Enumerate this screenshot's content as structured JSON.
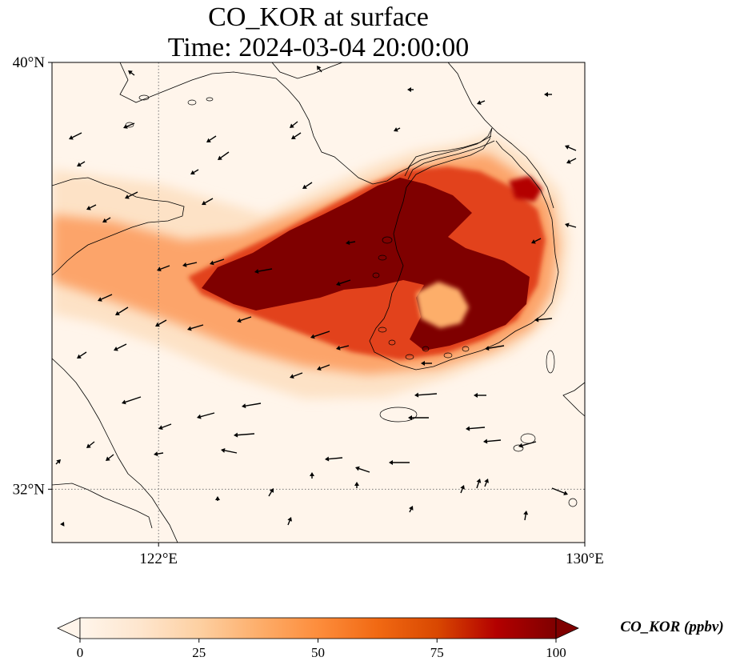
{
  "title": {
    "line1": "CO_KOR at surface",
    "line2": "Time: 2024-03-04 20:00:00"
  },
  "map": {
    "lon_range": [
      120,
      130
    ],
    "lat_range": [
      31,
      40
    ],
    "lat_ticks": [
      {
        "value": 40,
        "label": "40°N"
      },
      {
        "value": 32,
        "label": "32°N"
      }
    ],
    "lon_ticks": [
      {
        "value": 122,
        "label": "122°E"
      },
      {
        "value": 130,
        "label": "130°E"
      }
    ],
    "gridlines": {
      "lon": [
        122
      ],
      "lat": [
        32
      ],
      "style": "dotted"
    },
    "field_colors": {
      "background": "#fff5eb",
      "low": "#fee6ce",
      "medium": "#fdae6b",
      "high": "#e6550d",
      "very_high": "#7f0000"
    }
  },
  "colorbar": {
    "min": 0,
    "max": 100,
    "extend": "both",
    "ticks": [
      {
        "value": 0,
        "label": "0"
      },
      {
        "value": 25,
        "label": "25"
      },
      {
        "value": 50,
        "label": "50"
      },
      {
        "value": 75,
        "label": "75"
      },
      {
        "value": 100,
        "label": "100"
      }
    ],
    "label": "CO_KOR (ppbv)",
    "colors": [
      "#fff5eb",
      "#fee6ce",
      "#fdd0a2",
      "#fdae6b",
      "#fd8d3c",
      "#f16913",
      "#d94801",
      "#b30000",
      "#7f0000"
    ]
  }
}
